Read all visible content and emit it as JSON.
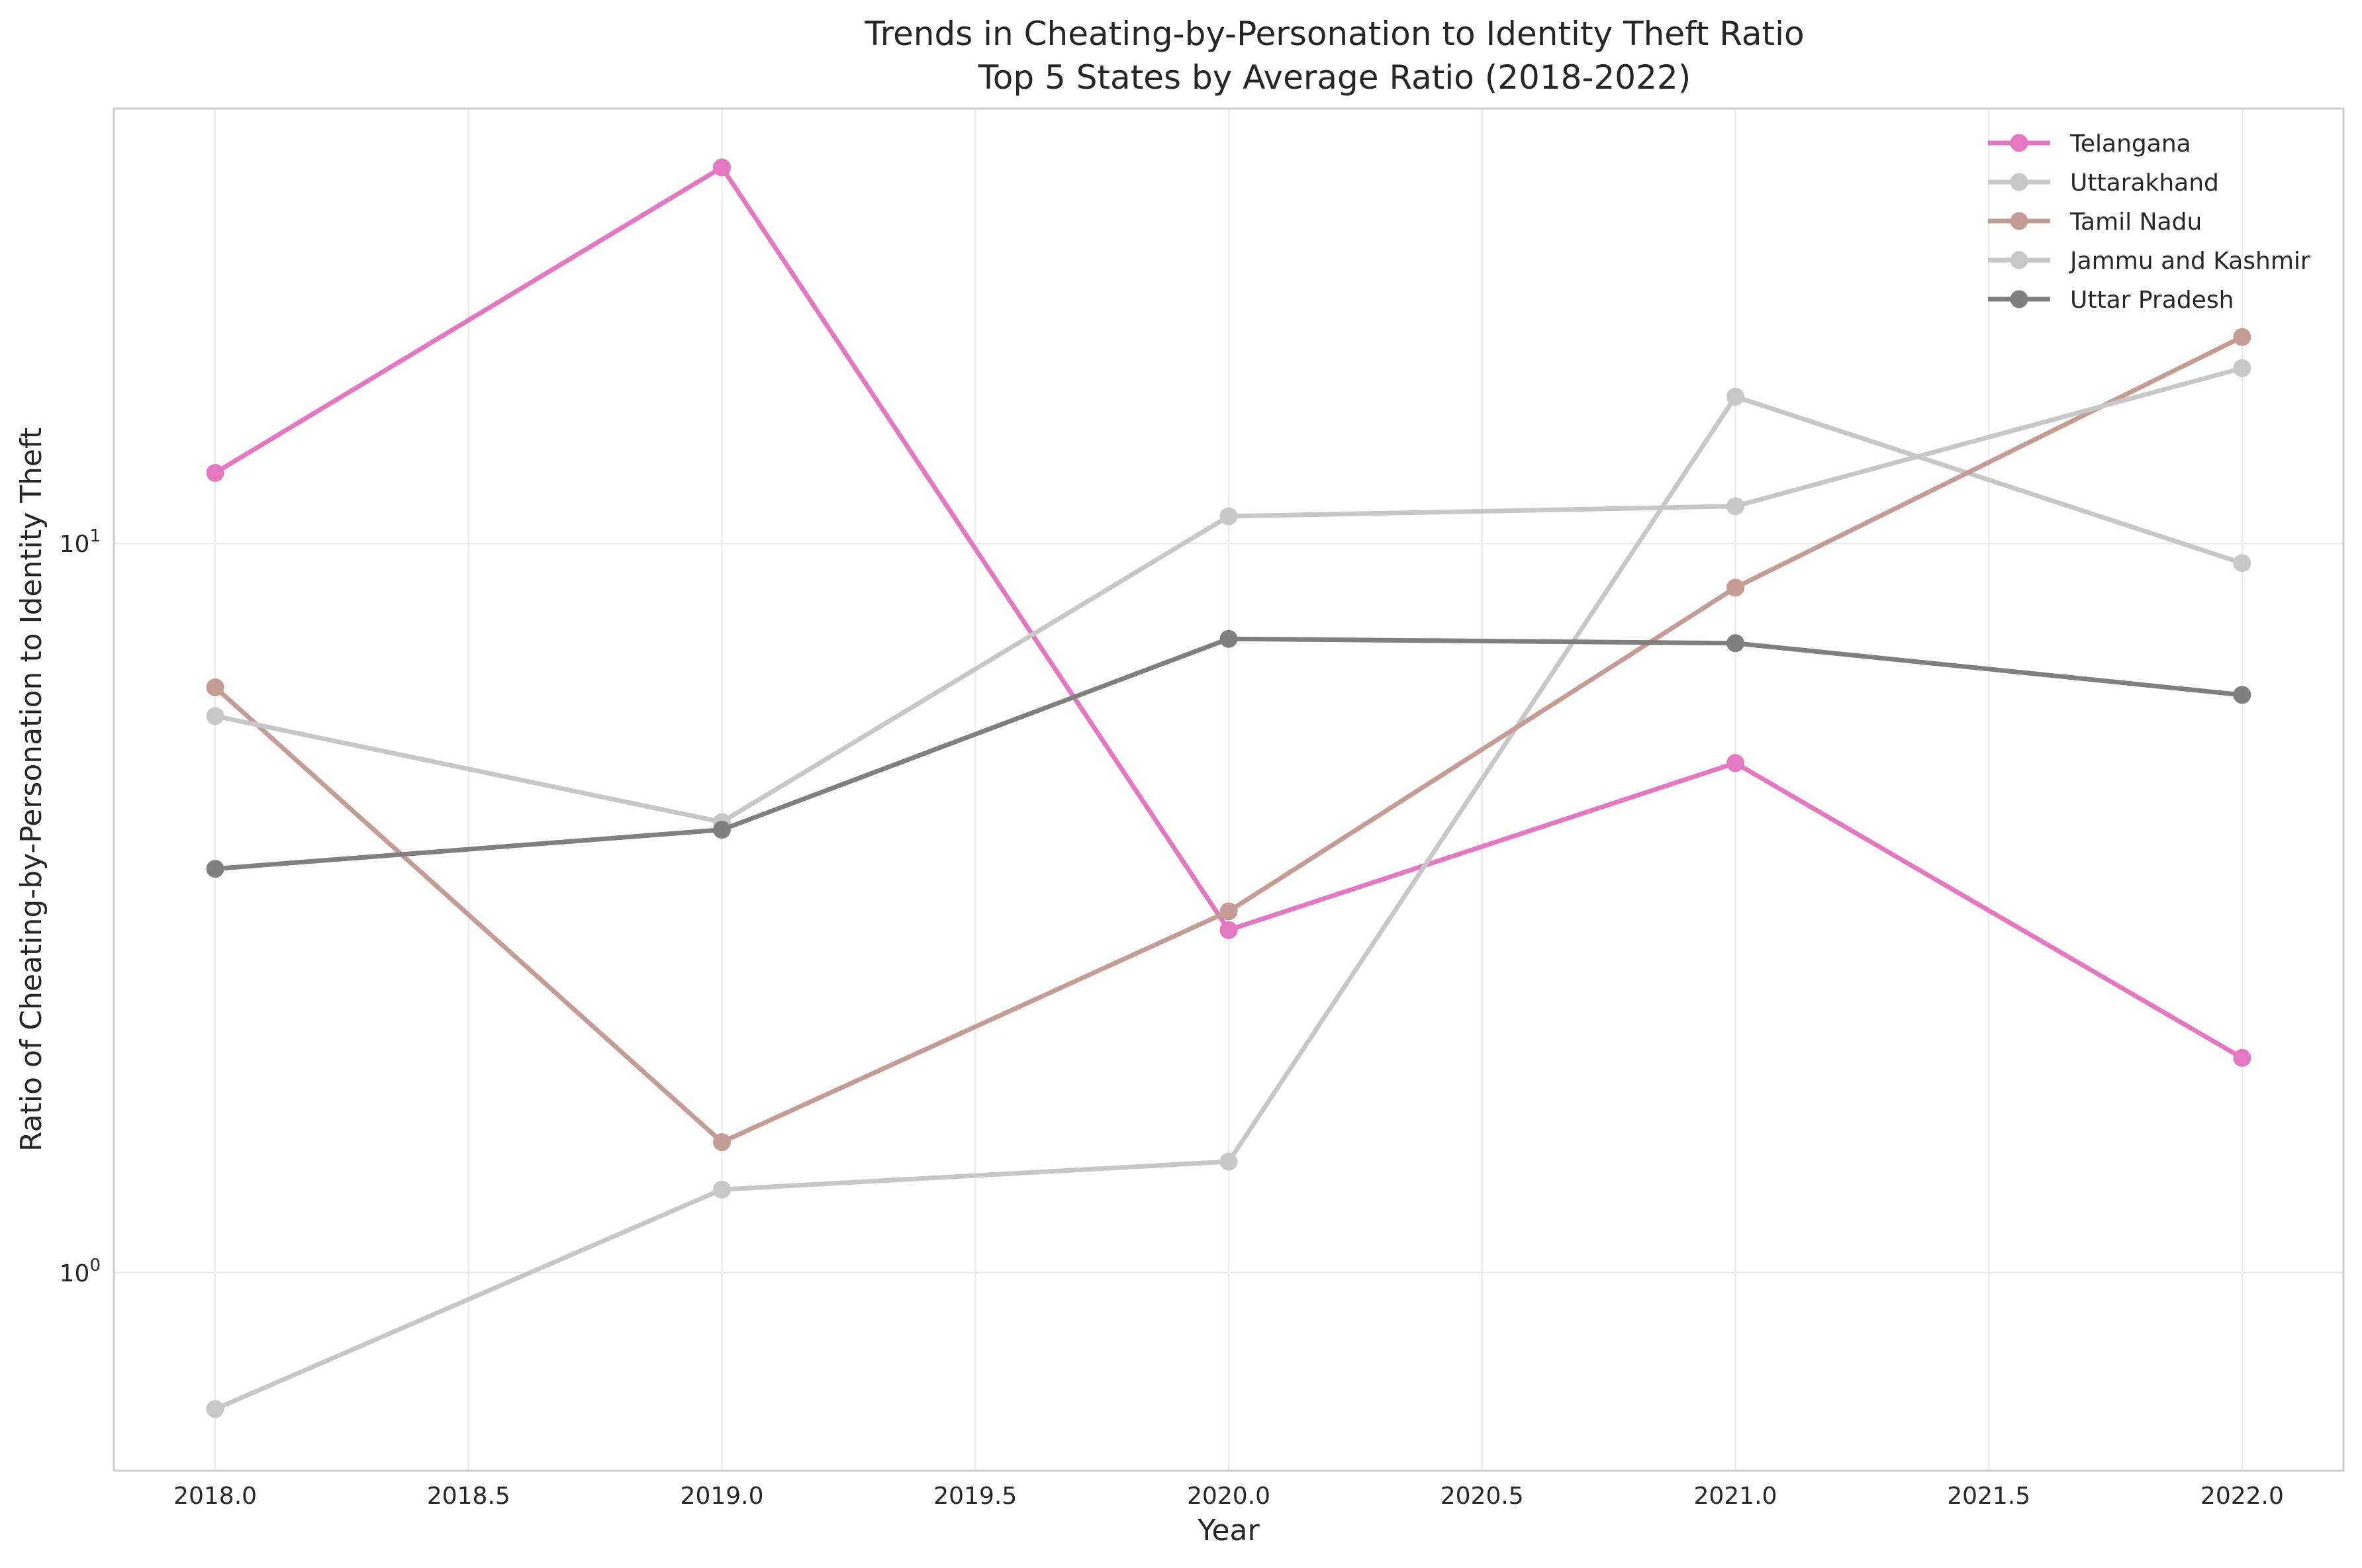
{
  "chart_data": {
    "type": "line",
    "title": "Trends in Cheating-by-Personation to Identity Theft Ratio",
    "subtitle": "Top 5 States by Average Ratio (2018-2022)",
    "xlabel": "Year",
    "ylabel": "Ratio of Cheating-by-Personation to Identity Theft",
    "x": [
      2018,
      2019,
      2020,
      2021,
      2022
    ],
    "xlim": [
      2017.8,
      2022.2
    ],
    "xticks": [
      2018.0,
      2018.5,
      2019.0,
      2019.5,
      2020.0,
      2020.5,
      2021.0,
      2021.5,
      2022.0
    ],
    "xtick_labels": [
      "2018.0",
      "2018.5",
      "2019.0",
      "2019.5",
      "2020.0",
      "2020.5",
      "2021.0",
      "2021.5",
      "2022.0"
    ],
    "yscale": "log",
    "ylim": [
      0.535,
      39.5
    ],
    "yticks": [
      1,
      10
    ],
    "ytick_labels": [
      {
        "base": "10",
        "exp": "0"
      },
      {
        "base": "10",
        "exp": "1"
      }
    ],
    "grid": true,
    "legend_position": "top-right",
    "series": [
      {
        "name": "Telangana",
        "color": "#e377c2",
        "values": [
          12.5,
          32.8,
          2.95,
          5.0,
          1.97
        ]
      },
      {
        "name": "Uttarakhand",
        "color": "#c7c7c7",
        "values": [
          0.65,
          1.3,
          1.42,
          15.9,
          9.4
        ]
      },
      {
        "name": "Tamil Nadu",
        "color": "#c49c94",
        "values": [
          6.35,
          1.51,
          3.13,
          8.7,
          19.2
        ]
      },
      {
        "name": "Jammu and Kashmir",
        "color": "#c7c7c7",
        "values": [
          5.8,
          4.15,
          10.9,
          11.25,
          17.4
        ]
      },
      {
        "name": "Uttar Pradesh",
        "color": "#7f7f7f",
        "values": [
          3.58,
          4.05,
          7.4,
          7.3,
          6.2
        ]
      }
    ]
  }
}
